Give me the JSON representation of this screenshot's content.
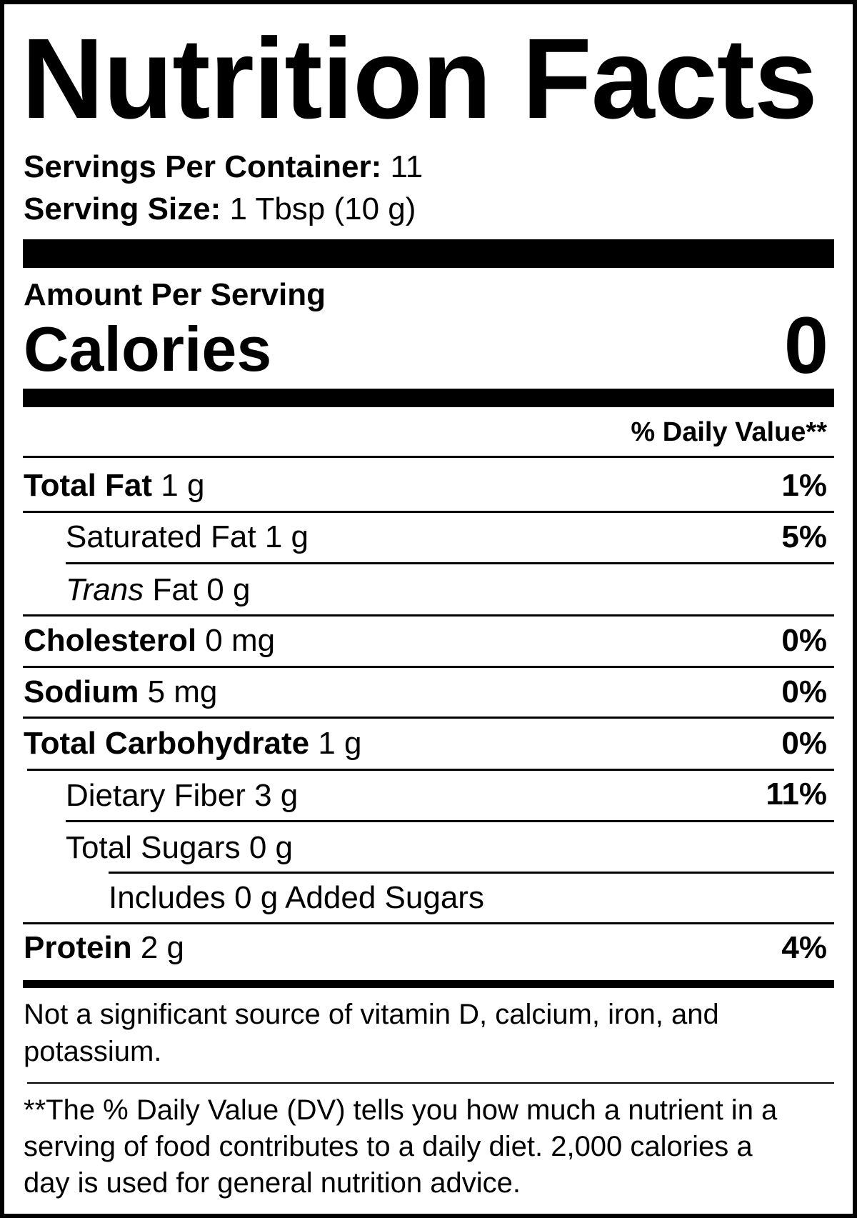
{
  "title": "Nutrition Facts",
  "servings_per_container": {
    "label": "Servings Per Container:",
    "value": "11"
  },
  "serving_size": {
    "label": "Serving Size:",
    "value": "1 Tbsp (10 g)"
  },
  "amount_per_serving": "Amount Per Serving",
  "calories": {
    "label": "Calories",
    "value": "0"
  },
  "daily_value_header": "% Daily Value**",
  "nutrients": [
    {
      "name": "Total Fat",
      "amount": "1 g",
      "dv": "1%"
    },
    {
      "name": "Saturated Fat",
      "amount": "1 g",
      "dv": "5%"
    },
    {
      "name": "Trans",
      "name_suffix": "Fat",
      "amount": "0 g",
      "dv": ""
    },
    {
      "name": "Cholesterol",
      "amount": "0 mg",
      "dv": "0%"
    },
    {
      "name": "Sodium",
      "amount": "5 mg",
      "dv": "0%"
    },
    {
      "name": "Total Carbohydrate",
      "amount": "1 g",
      "dv": "0%"
    },
    {
      "name": "Dietary Fiber",
      "amount": "3 g",
      "dv": "11%"
    },
    {
      "name": "Total Sugars",
      "amount": "0 g",
      "dv": ""
    },
    {
      "name": "Includes 0 g Added Sugars",
      "amount": "",
      "dv": ""
    },
    {
      "name": "Protein",
      "amount": "2 g",
      "dv": "4%"
    }
  ],
  "not_significant": [
    "Not a significant source of vitamin D, calcium, iron, and",
    "potassium."
  ],
  "footnote": [
    "**The % Daily Value (DV) tells you how much a nutrient in a",
    "serving of food contributes to a daily diet. 2,000 calories a",
    "day is used for general nutrition advice."
  ]
}
